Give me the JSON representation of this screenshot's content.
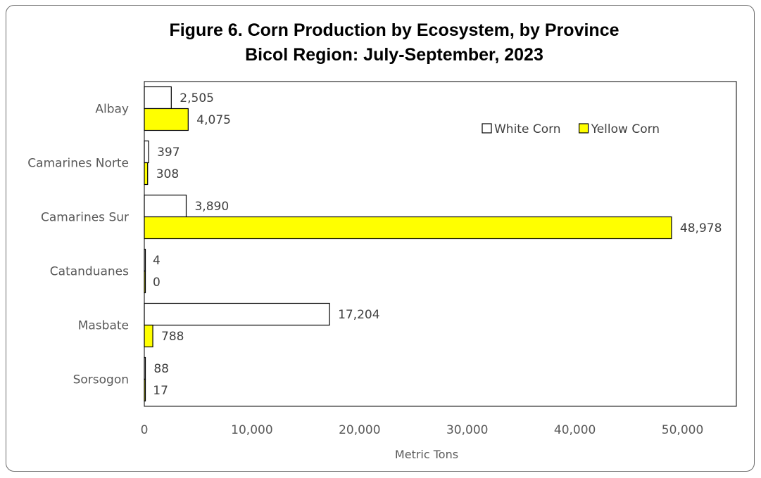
{
  "chart_data": {
    "type": "bar",
    "orientation": "horizontal",
    "title_line1": "Figure 6. Corn Production by Ecosystem, by Province",
    "title_line2": "Bicol Region: July-September, 2023",
    "categories": [
      "Albay",
      "Camarines Norte",
      "Camarines Sur",
      "Catanduanes",
      "Masbate",
      "Sorsogon"
    ],
    "series": [
      {
        "name": "White Corn",
        "color": "#ffffff",
        "values": [
          2505,
          397,
          3890,
          4,
          17204,
          88
        ],
        "labels": [
          "2,505",
          "397",
          "3,890",
          "4",
          "17,204",
          "88"
        ]
      },
      {
        "name": "Yellow Corn",
        "color": "#ffff00",
        "values": [
          4075,
          308,
          48978,
          0,
          788,
          17
        ],
        "labels": [
          "4,075",
          "308",
          "48,978",
          "0",
          "788",
          "17"
        ]
      }
    ],
    "xlabel": "Metric Tons",
    "xlim": [
      0,
      55000
    ],
    "xticks": [
      0,
      10000,
      20000,
      30000,
      40000,
      50000
    ],
    "xtick_labels": [
      "0",
      "10,000",
      "20,000",
      "30,000",
      "40,000",
      "50,000"
    ],
    "grid": false,
    "legend_position": "upper-right-inside"
  }
}
